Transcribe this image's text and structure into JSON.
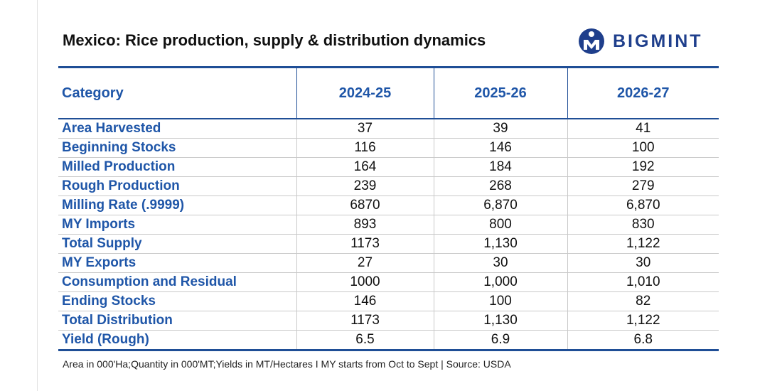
{
  "title": "Mexico: Rice production, supply & distribution dynamics",
  "logo": {
    "text": "BIGMINT",
    "color": "#1f3f8c"
  },
  "chart_data": {
    "type": "table",
    "title": "Mexico: Rice production, supply & distribution dynamics",
    "columns": [
      "Category",
      "2024-25",
      "2025-26",
      "2026-27"
    ],
    "rows": [
      {
        "category": "Area Harvested",
        "values": [
          "37",
          "39",
          "41"
        ]
      },
      {
        "category": "Beginning Stocks",
        "values": [
          "116",
          "146",
          "100"
        ]
      },
      {
        "category": "Milled Production",
        "values": [
          "164",
          "184",
          "192"
        ]
      },
      {
        "category": "Rough Production",
        "values": [
          "239",
          "268",
          "279"
        ]
      },
      {
        "category": "Milling Rate (.9999)",
        "values": [
          "6870",
          "6,870",
          "6,870"
        ]
      },
      {
        "category": "MY Imports",
        "values": [
          "893",
          "800",
          "830"
        ]
      },
      {
        "category": "Total Supply",
        "values": [
          "1173",
          "1,130",
          "1,122"
        ]
      },
      {
        "category": "MY Exports",
        "values": [
          "27",
          "30",
          "30"
        ]
      },
      {
        "category": "Consumption and Residual",
        "values": [
          "1000",
          "1,000",
          "1,010"
        ]
      },
      {
        "category": "Ending Stocks",
        "values": [
          "146",
          "100",
          "82"
        ]
      },
      {
        "category": "Total Distribution",
        "values": [
          "1173",
          "1,130",
          "1,122"
        ]
      },
      {
        "category": "Yield (Rough)",
        "values": [
          "6.5",
          "6.9",
          "6.8"
        ]
      }
    ]
  },
  "footnote": "Area in 000'Ha;Quantity in 000'MT;Yields in MT/Hectares I MY starts from Oct to Sept | Source: USDA",
  "colors": {
    "accent": "#1f56a8",
    "rule": "#1f4e96",
    "grid": "#c9c9c9"
  }
}
